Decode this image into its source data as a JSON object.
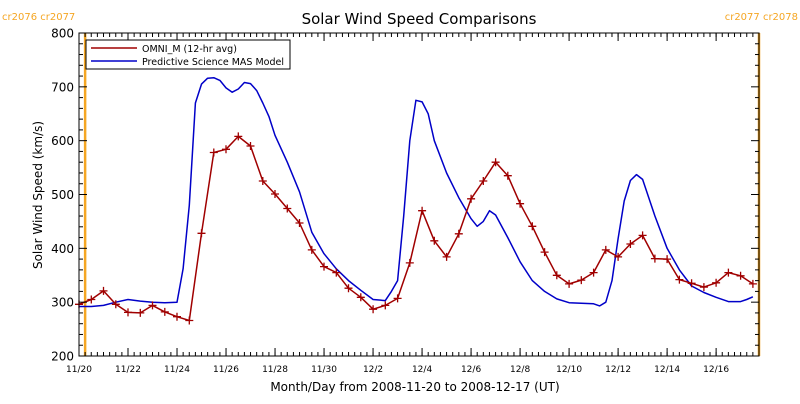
{
  "chart_data": {
    "type": "line",
    "title": "Solar Wind Speed Comparisons",
    "xlabel": "Month/Day from 2008-11-20 to 2008-12-17 (UT)",
    "ylabel": "Solar Wind Speed (km/s)",
    "xlim": [
      "2008-11-20T00:00",
      "2008-12-17T18:00"
    ],
    "ylim": [
      200,
      800
    ],
    "y_ticks": [
      200,
      300,
      400,
      500,
      600,
      700,
      800
    ],
    "x_ticks": [
      {
        "date": "2008-11-20",
        "label": "11/20"
      },
      {
        "date": "2008-11-22",
        "label": "11/22"
      },
      {
        "date": "2008-11-24",
        "label": "11/24"
      },
      {
        "date": "2008-11-26",
        "label": "11/26"
      },
      {
        "date": "2008-11-28",
        "label": "11/28"
      },
      {
        "date": "2008-11-30",
        "label": "11/30"
      },
      {
        "date": "2008-12-02",
        "label": "12/2"
      },
      {
        "date": "2008-12-04",
        "label": "12/4"
      },
      {
        "date": "2008-12-06",
        "label": "12/6"
      },
      {
        "date": "2008-12-08",
        "label": "12/8"
      },
      {
        "date": "2008-12-10",
        "label": "12/10"
      },
      {
        "date": "2008-12-12",
        "label": "12/12"
      },
      {
        "date": "2008-12-14",
        "label": "12/14"
      },
      {
        "date": "2008-12-16",
        "label": "12/16"
      }
    ],
    "legend_position": "top-left",
    "grid": false,
    "rotation_markers": [
      {
        "date": "2008-11-20T06:00",
        "labels": [
          "cr2076",
          "cr2077"
        ],
        "color": "#f5a623"
      },
      {
        "date": "2008-12-17T18:00",
        "labels": [
          "cr2077",
          "cr2078"
        ],
        "color": "#f5a623"
      }
    ],
    "series": [
      {
        "name": "OMNI_M (12-hr avg)",
        "color": "#a00000",
        "marker": "plus",
        "points": [
          [
            "2008-11-20T00:00",
            296
          ],
          [
            "2008-11-20T12:00",
            305
          ],
          [
            "2008-11-21T00:00",
            321
          ],
          [
            "2008-11-21T12:00",
            296
          ],
          [
            "2008-11-22T00:00",
            281
          ],
          [
            "2008-11-22T12:00",
            280
          ],
          [
            "2008-11-23T00:00",
            294
          ],
          [
            "2008-11-23T12:00",
            282
          ],
          [
            "2008-11-24T00:00",
            273
          ],
          [
            "2008-11-24T12:00",
            266
          ],
          [
            "2008-11-25T00:00",
            428
          ],
          [
            "2008-11-25T12:00",
            578
          ],
          [
            "2008-11-26T00:00",
            584
          ],
          [
            "2008-11-26T12:00",
            608
          ],
          [
            "2008-11-27T00:00",
            590
          ],
          [
            "2008-11-27T12:00",
            525
          ],
          [
            "2008-11-28T00:00",
            501
          ],
          [
            "2008-11-28T12:00",
            474
          ],
          [
            "2008-11-29T00:00",
            447
          ],
          [
            "2008-11-29T12:00",
            397
          ],
          [
            "2008-11-30T00:00",
            366
          ],
          [
            "2008-11-30T12:00",
            355
          ],
          [
            "2008-12-01T00:00",
            326
          ],
          [
            "2008-12-01T12:00",
            309
          ],
          [
            "2008-12-02T00:00",
            287
          ],
          [
            "2008-12-02T12:00",
            294
          ],
          [
            "2008-12-03T00:00",
            307
          ],
          [
            "2008-12-03T12:00",
            373
          ],
          [
            "2008-12-04T00:00",
            470
          ],
          [
            "2008-12-04T12:00",
            414
          ],
          [
            "2008-12-05T00:00",
            384
          ],
          [
            "2008-12-05T12:00",
            427
          ],
          [
            "2008-12-06T00:00",
            492
          ],
          [
            "2008-12-06T12:00",
            525
          ],
          [
            "2008-12-07T00:00",
            560
          ],
          [
            "2008-12-07T12:00",
            535
          ],
          [
            "2008-12-08T00:00",
            483
          ],
          [
            "2008-12-08T12:00",
            441
          ],
          [
            "2008-12-09T00:00",
            393
          ],
          [
            "2008-12-09T12:00",
            350
          ],
          [
            "2008-12-10T00:00",
            334
          ],
          [
            "2008-12-10T12:00",
            341
          ],
          [
            "2008-12-11T00:00",
            355
          ],
          [
            "2008-12-11T12:00",
            397
          ],
          [
            "2008-12-12T00:00",
            384
          ],
          [
            "2008-12-12T12:00",
            408
          ],
          [
            "2008-12-13T00:00",
            424
          ],
          [
            "2008-12-13T12:00",
            381
          ],
          [
            "2008-12-14T00:00",
            380
          ],
          [
            "2008-12-14T12:00",
            342
          ],
          [
            "2008-12-15T00:00",
            335
          ],
          [
            "2008-12-15T12:00",
            328
          ],
          [
            "2008-12-16T00:00",
            336
          ],
          [
            "2008-12-16T12:00",
            355
          ],
          [
            "2008-12-17T00:00",
            349
          ],
          [
            "2008-12-17T12:00",
            334
          ]
        ]
      },
      {
        "name": "Predictive Science MAS Model",
        "color": "#0000c8",
        "marker": "none",
        "points": [
          [
            "2008-11-20T00:00",
            292
          ],
          [
            "2008-11-20T12:00",
            292
          ],
          [
            "2008-11-21T00:00",
            294
          ],
          [
            "2008-11-21T12:00",
            300
          ],
          [
            "2008-11-22T00:00",
            305
          ],
          [
            "2008-11-22T12:00",
            302
          ],
          [
            "2008-11-23T00:00",
            300
          ],
          [
            "2008-11-23T12:00",
            299
          ],
          [
            "2008-11-24T00:00",
            300
          ],
          [
            "2008-11-24T06:00",
            362
          ],
          [
            "2008-11-24T12:00",
            480
          ],
          [
            "2008-11-24T18:00",
            670
          ],
          [
            "2008-11-25T00:00",
            705
          ],
          [
            "2008-11-25T06:00",
            716
          ],
          [
            "2008-11-25T12:00",
            717
          ],
          [
            "2008-11-25T18:00",
            712
          ],
          [
            "2008-11-26T00:00",
            698
          ],
          [
            "2008-11-26T06:00",
            690
          ],
          [
            "2008-11-26T12:00",
            696
          ],
          [
            "2008-11-26T18:00",
            708
          ],
          [
            "2008-11-27T00:00",
            706
          ],
          [
            "2008-11-27T06:00",
            693
          ],
          [
            "2008-11-27T12:00",
            670
          ],
          [
            "2008-11-27T18:00",
            645
          ],
          [
            "2008-11-28T00:00",
            610
          ],
          [
            "2008-11-28T12:00",
            560
          ],
          [
            "2008-11-29T00:00",
            505
          ],
          [
            "2008-11-29T12:00",
            430
          ],
          [
            "2008-11-30T00:00",
            390
          ],
          [
            "2008-11-30T12:00",
            362
          ],
          [
            "2008-12-01T00:00",
            340
          ],
          [
            "2008-12-01T12:00",
            322
          ],
          [
            "2008-12-02T00:00",
            305
          ],
          [
            "2008-12-02T12:00",
            303
          ],
          [
            "2008-12-02T18:00",
            320
          ],
          [
            "2008-12-03T00:00",
            340
          ],
          [
            "2008-12-03T06:00",
            460
          ],
          [
            "2008-12-03T12:00",
            600
          ],
          [
            "2008-12-03T18:00",
            675
          ],
          [
            "2008-12-04T00:00",
            672
          ],
          [
            "2008-12-04T06:00",
            650
          ],
          [
            "2008-12-04T12:00",
            600
          ],
          [
            "2008-12-05T00:00",
            540
          ],
          [
            "2008-12-05T12:00",
            494
          ],
          [
            "2008-12-06T00:00",
            455
          ],
          [
            "2008-12-06T06:00",
            441
          ],
          [
            "2008-12-06T12:00",
            450
          ],
          [
            "2008-12-06T18:00",
            470
          ],
          [
            "2008-12-07T00:00",
            462
          ],
          [
            "2008-12-07T12:00",
            420
          ],
          [
            "2008-12-08T00:00",
            375
          ],
          [
            "2008-12-08T12:00",
            340
          ],
          [
            "2008-12-09T00:00",
            320
          ],
          [
            "2008-12-09T12:00",
            306
          ],
          [
            "2008-12-10T00:00",
            299
          ],
          [
            "2008-12-10T12:00",
            298
          ],
          [
            "2008-12-11T00:00",
            297
          ],
          [
            "2008-12-11T06:00",
            293
          ],
          [
            "2008-12-11T12:00",
            300
          ],
          [
            "2008-12-11T18:00",
            340
          ],
          [
            "2008-12-12T00:00",
            418
          ],
          [
            "2008-12-12T06:00",
            488
          ],
          [
            "2008-12-12T12:00",
            526
          ],
          [
            "2008-12-12T18:00",
            537
          ],
          [
            "2008-12-13T00:00",
            528
          ],
          [
            "2008-12-13T12:00",
            460
          ],
          [
            "2008-12-14T00:00",
            400
          ],
          [
            "2008-12-14T12:00",
            360
          ],
          [
            "2008-12-15T00:00",
            330
          ],
          [
            "2008-12-15T12:00",
            318
          ],
          [
            "2008-12-16T00:00",
            309
          ],
          [
            "2008-12-16T12:00",
            301
          ],
          [
            "2008-12-17T00:00",
            301
          ],
          [
            "2008-12-17T06:00",
            305
          ],
          [
            "2008-12-17T12:00",
            310
          ]
        ]
      }
    ]
  }
}
